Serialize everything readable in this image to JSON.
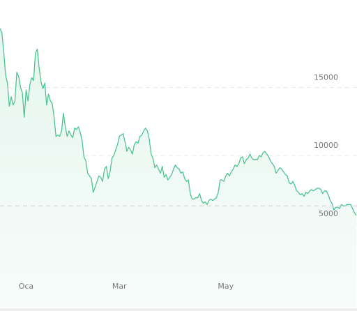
{
  "chart_data": {
    "type": "area",
    "title": "",
    "xlabel": "",
    "ylabel": "",
    "x_tick_labels": [
      "Oca",
      "Mar",
      "May"
    ],
    "y_tick_values": [
      5000,
      10000,
      15000
    ],
    "y_tick_labels": [
      "5000",
      "10000",
      "15000"
    ],
    "ylim": [
      -1500,
      21000
    ],
    "reference_line": 5900,
    "grid": true,
    "legend": "none",
    "colors": {
      "line": "#4cc491",
      "fill_top": "#e6f6ef",
      "fill_bottom": "#f7fcfa",
      "grid": "#e6e6e6",
      "tick_text": "#777777"
    },
    "x_tick_index": [
      14,
      64,
      121
    ],
    "series": [
      {
        "values": [
          18900,
          18600,
          17200,
          15500,
          14900,
          13200,
          13900,
          13300,
          13600,
          15700,
          15400,
          14600,
          14200,
          12400,
          14400,
          13600,
          14800,
          15300,
          15100,
          17100,
          17400,
          16000,
          15000,
          14500,
          14900,
          13300,
          14100,
          13600,
          13400,
          12400,
          11000,
          11100,
          11000,
          11400,
          12700,
          11700,
          11000,
          11400,
          11100,
          10900,
          11600,
          11500,
          11700,
          11300,
          10700,
          9500,
          9200,
          8300,
          8100,
          7900,
          6900,
          7300,
          7700,
          8100,
          8000,
          7700,
          8600,
          8800,
          7900,
          8400,
          9400,
          9600,
          10000,
          10400,
          11000,
          11100,
          11200,
          10600,
          9900,
          10200,
          10000,
          9700,
          10400,
          10600,
          10500,
          11000,
          11100,
          11400,
          11600,
          11400,
          10800,
          9700,
          9400,
          8700,
          8900,
          8600,
          8300,
          8800,
          8000,
          8200,
          7800,
          8000,
          8200,
          8600,
          8900,
          8700,
          8600,
          8300,
          8400,
          7900,
          7700,
          7800,
          6800,
          6400,
          6400,
          6500,
          6500,
          6800,
          6300,
          6100,
          6200,
          6000,
          6300,
          6400,
          6300,
          6400,
          6500,
          6900,
          7800,
          7800,
          7700,
          8100,
          8300,
          8100,
          8400,
          8600,
          8900,
          8800,
          9000,
          9400,
          9500,
          9000,
          9300,
          9400,
          9700,
          9400,
          9300,
          9300,
          9300,
          9600,
          9500,
          9800,
          9900,
          9700,
          9500,
          9200,
          9000,
          8800,
          8300,
          8500,
          8700,
          8600,
          8400,
          8200,
          8100,
          7600,
          7500,
          7700,
          7400,
          7000,
          6900,
          6700,
          6800,
          6600,
          6900,
          6800,
          7000,
          7100,
          7000,
          7100,
          7200,
          7200,
          7100,
          6800,
          7000,
          7000,
          6700,
          6300,
          6100,
          5600,
          5800,
          5800,
          5700,
          6000,
          5900,
          5900,
          6000,
          6000,
          6000,
          5700,
          5400,
          5200
        ]
      }
    ]
  }
}
